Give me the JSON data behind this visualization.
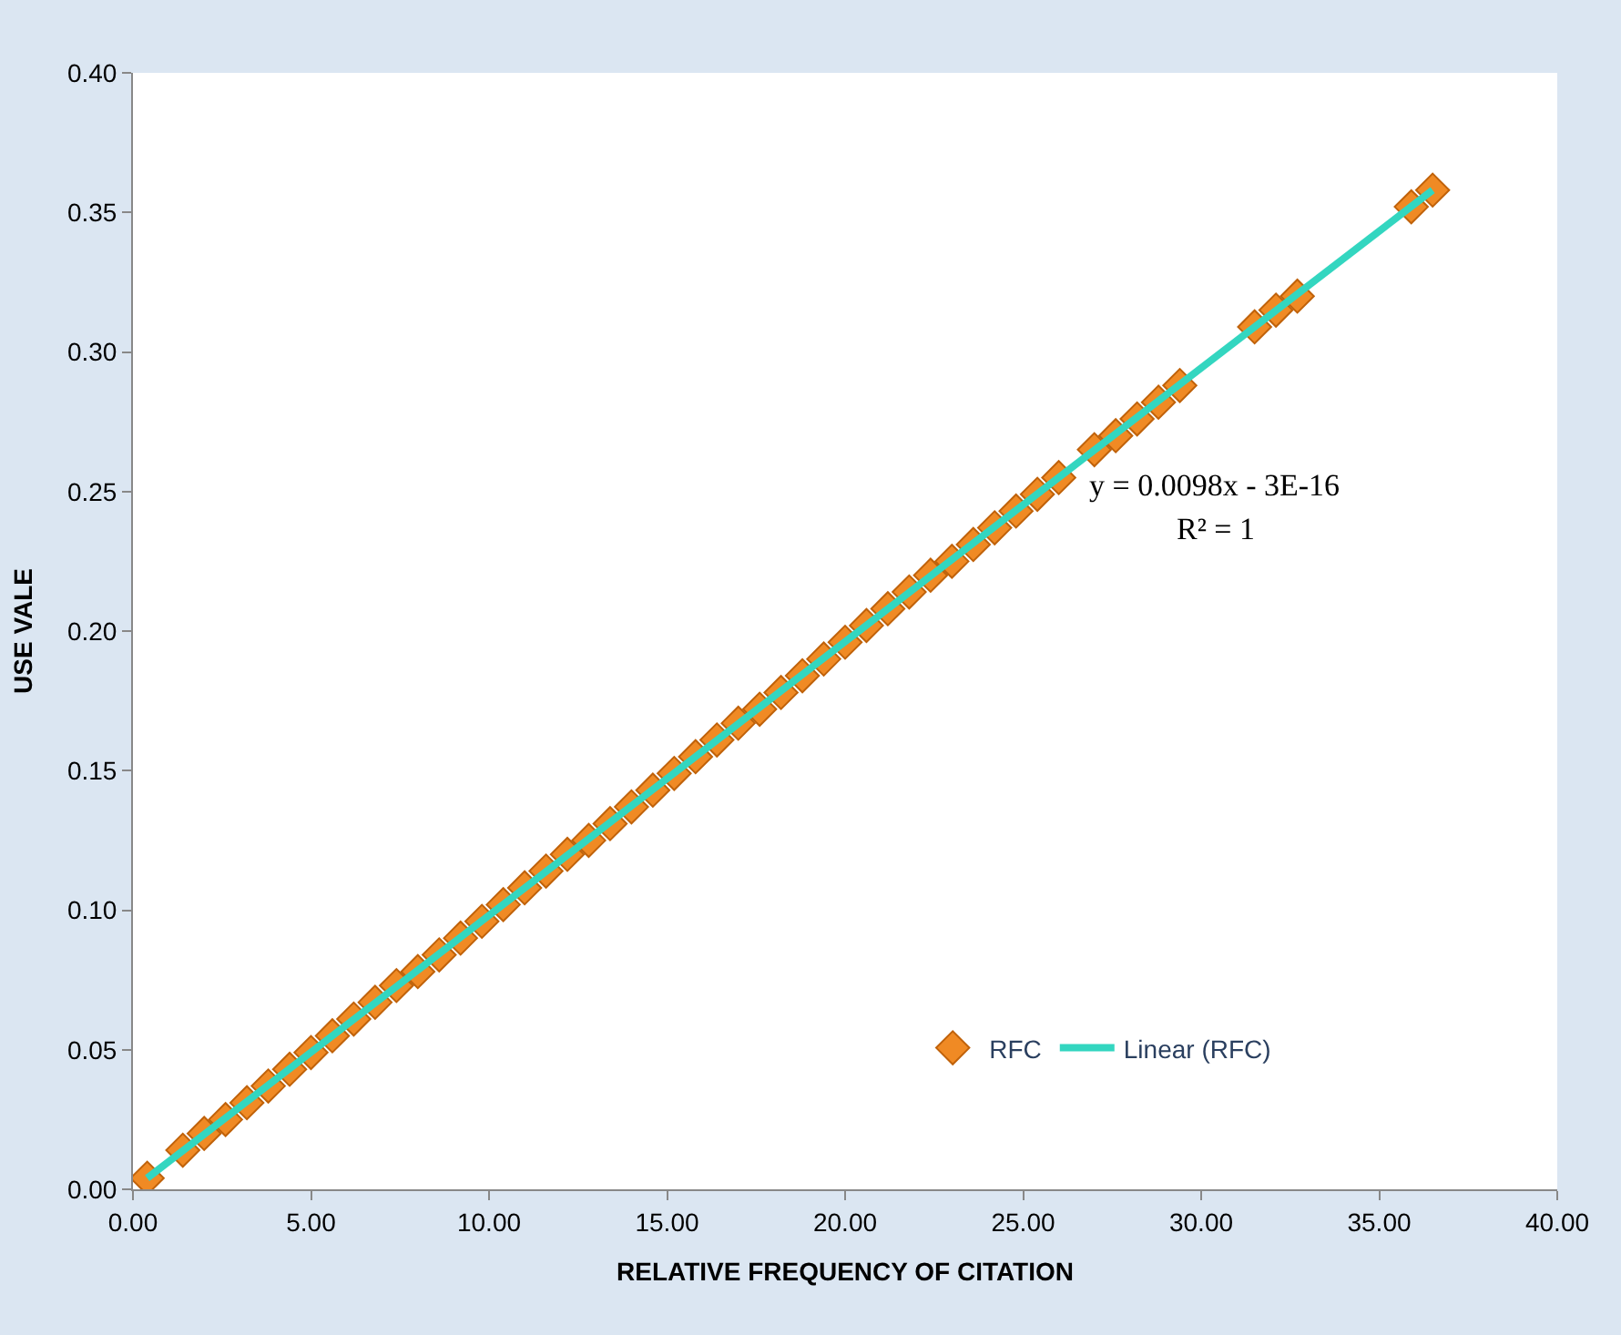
{
  "chart_data": {
    "type": "scatter",
    "xlabel": "RELATIVE FREQUENCY OF CITATION",
    "ylabel": "USE VALE",
    "xlim": [
      0,
      40
    ],
    "xticks": [
      {
        "value": 0,
        "label": "0.00"
      },
      {
        "value": 5,
        "label": "5.00"
      },
      {
        "value": 10,
        "label": "10.00"
      },
      {
        "value": 15,
        "label": "15.00"
      },
      {
        "value": 20,
        "label": "20.00"
      },
      {
        "value": 25,
        "label": "25.00"
      },
      {
        "value": 30,
        "label": "30.00"
      },
      {
        "value": 35,
        "label": "35.00"
      },
      {
        "value": 40,
        "label": "40.00"
      }
    ],
    "ylim": [
      0,
      0.4
    ],
    "yticks": [
      {
        "value": 0,
        "label": "0.00"
      },
      {
        "value": 0.05,
        "label": "0.05"
      },
      {
        "value": 0.1,
        "label": "0.10"
      },
      {
        "value": 0.15,
        "label": "0.15"
      },
      {
        "value": 0.2,
        "label": "0.20"
      },
      {
        "value": 0.25,
        "label": "0.25"
      },
      {
        "value": 0.3,
        "label": "0.30"
      },
      {
        "value": 0.35,
        "label": "0.35"
      },
      {
        "value": 0.4,
        "label": "0.40"
      }
    ],
    "grid": false,
    "legend": "bottom right",
    "annotations": [
      "y = 0.0098x - 3E-16",
      "R² = 1"
    ],
    "series": [
      {
        "name": "RFC",
        "marker": "diamond",
        "color": "#f08a24",
        "x": [
          0.4,
          1.4,
          2.0,
          2.6,
          3.2,
          3.8,
          4.4,
          5.0,
          5.6,
          6.2,
          6.8,
          7.4,
          8.0,
          8.6,
          9.2,
          9.8,
          10.4,
          11.0,
          11.6,
          12.2,
          12.8,
          13.4,
          14.0,
          14.6,
          15.2,
          15.8,
          16.4,
          17.0,
          17.6,
          18.2,
          18.8,
          19.4,
          20.0,
          20.6,
          21.2,
          21.8,
          22.4,
          23.0,
          23.6,
          24.2,
          24.8,
          25.4,
          26.0,
          27.0,
          27.6,
          28.2,
          28.8,
          29.4,
          31.5,
          32.1,
          32.7,
          35.9,
          36.5
        ],
        "values": [
          0.004,
          0.014,
          0.02,
          0.025,
          0.031,
          0.037,
          0.043,
          0.049,
          0.055,
          0.061,
          0.067,
          0.073,
          0.078,
          0.084,
          0.09,
          0.096,
          0.102,
          0.108,
          0.114,
          0.12,
          0.125,
          0.131,
          0.137,
          0.143,
          0.149,
          0.155,
          0.161,
          0.167,
          0.172,
          0.178,
          0.184,
          0.19,
          0.196,
          0.202,
          0.208,
          0.214,
          0.22,
          0.225,
          0.231,
          0.237,
          0.243,
          0.249,
          0.255,
          0.265,
          0.27,
          0.276,
          0.282,
          0.288,
          0.309,
          0.315,
          0.32,
          0.352,
          0.358
        ]
      },
      {
        "name": "Linear (RFC)",
        "type": "line",
        "marker": "none",
        "line_style": "solid",
        "color": "#33d6c0",
        "x": [
          0.4,
          36.5
        ],
        "values": [
          0.004,
          0.358
        ]
      }
    ]
  }
}
